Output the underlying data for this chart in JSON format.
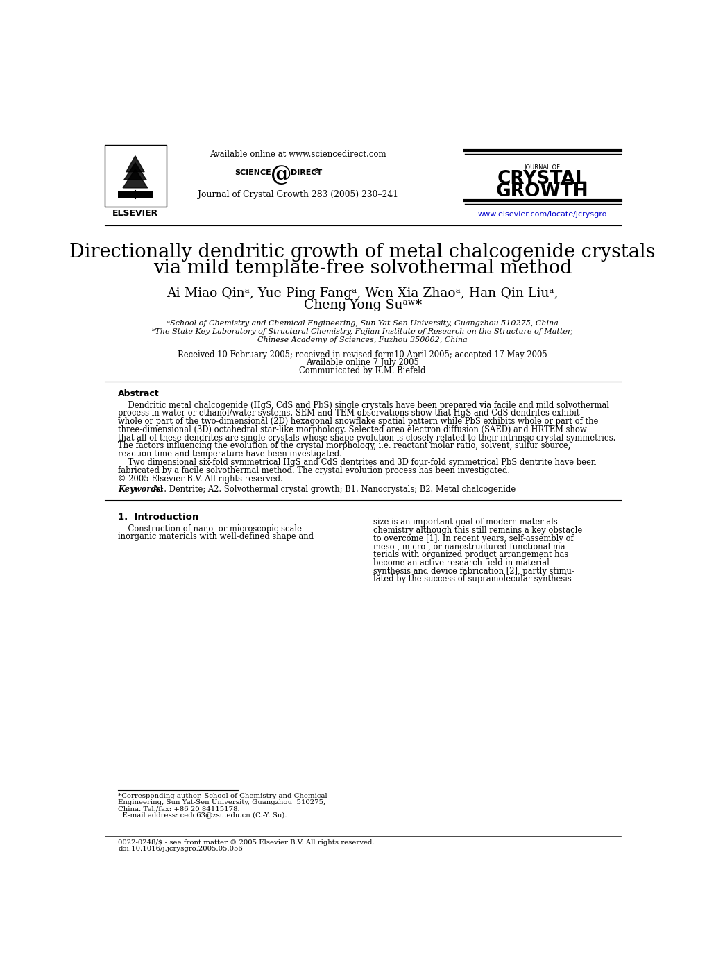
{
  "bg_color": "#ffffff",
  "title_line1": "Directionally dendritic growth of metal chalcogenide crystals",
  "title_line2": "via mild template-free solvothermal method",
  "authors_line1": "Ai-Miao Qinᵃ, Yue-Ping Fangᵃ, Wen-Xia Zhaoᵃ, Han-Qin Liuᵃ,",
  "authors_line2": "Cheng-Yong Suᵃʷ*",
  "affil_a": "ᵃSchool of Chemistry and Chemical Engineering, Sun Yat-Sen University, Guangzhou 510275, China",
  "affil_b": "ᵇThe State Key Laboratory of Structural Chemistry, Fujian Institute of Research on the Structure of Matter,",
  "affil_b2": "Chinese Academy of Sciences, Fuzhou 350002, China",
  "received": "Received 10 February 2005; received in revised form10 April 2005; accepted 17 May 2005",
  "available": "Available online 7 July 2005",
  "communicated": "Communicated by R.M. Biefeld",
  "journal_header": "Journal of Crystal Growth 283 (2005) 230–241",
  "available_online": "Available online at www.sciencedirect.com",
  "elsevier_url": "www.elsevier.com/locate/jcrysgro",
  "abstract_title": "Abstract",
  "abstract_p1_lines": [
    "    Dendritic metal chalcogenide (HgS, CdS and PbS) single crystals have been prepared via facile and mild solvothermal",
    "process in water or ethanol/water systems. SEM and TEM observations show that HgS and CdS dendrites exhibit",
    "whole or part of the two-dimensional (2D) hexagonal snowflake spatial pattern while PbS exhibits whole or part of the",
    "three-dimensional (3D) octahedral star-like morphology. Selected area electron diffusion (SAED) and HRTEM show",
    "that all of these dendrites are single crystals whose shape evolution is closely related to their intrinsic crystal symmetries.",
    "The factors influencing the evolution of the crystal morphology, i.e. reactant molar ratio, solvent, sulfur source,",
    "reaction time and temperature have been investigated."
  ],
  "abstract_p2_lines": [
    "    Two dimensional six-fold symmetrical HgS and CdS dentrites and 3D four-fold symmetrical PbS dentrite have been",
    "fabricated by a facile solvothermal method. The crystal evolution process has been investigated.",
    "© 2005 Elsevier B.V. All rights reserved."
  ],
  "keywords_bold": "Keywords:",
  "keywords_rest": " A1. Dentrite; A2. Solvothermal crystal growth; B1. Nanocrystals; B2. Metal chalcogenide",
  "section1_title": "1.  Introduction",
  "intro_left_lines": [
    "    Construction of nano- or microscopic-scale",
    "inorganic materials with well-defined shape and"
  ],
  "intro_right_lines": [
    "size is an important goal of modern materials",
    "chemistry although this still remains a key obstacle",
    "to overcome [1]. In recent years, self-assembly of",
    "meso-, micro-, or nanostructured functional ma-",
    "terials with organized product arrangement has",
    "become an active research field in material",
    "synthesis and device fabrication [2], partly stimu-",
    "lated by the success of supramolecular synthesis"
  ],
  "footnote_lines": [
    "*Corresponding author. School of Chemistry and Chemical",
    "Engineering, Sun Yat-Sen University, Guangzhou  510275,",
    "China. Tel./fax: +86 20 84115178.",
    "  E-mail address: cedc63@zsu.edu.cn (C.-Y. Su)."
  ],
  "footer_lines": [
    "0022-0248/$ - see front matter © 2005 Elsevier B.V. All rights reserved.",
    "doi:10.1016/j.jcrysgro.2005.05.056"
  ]
}
